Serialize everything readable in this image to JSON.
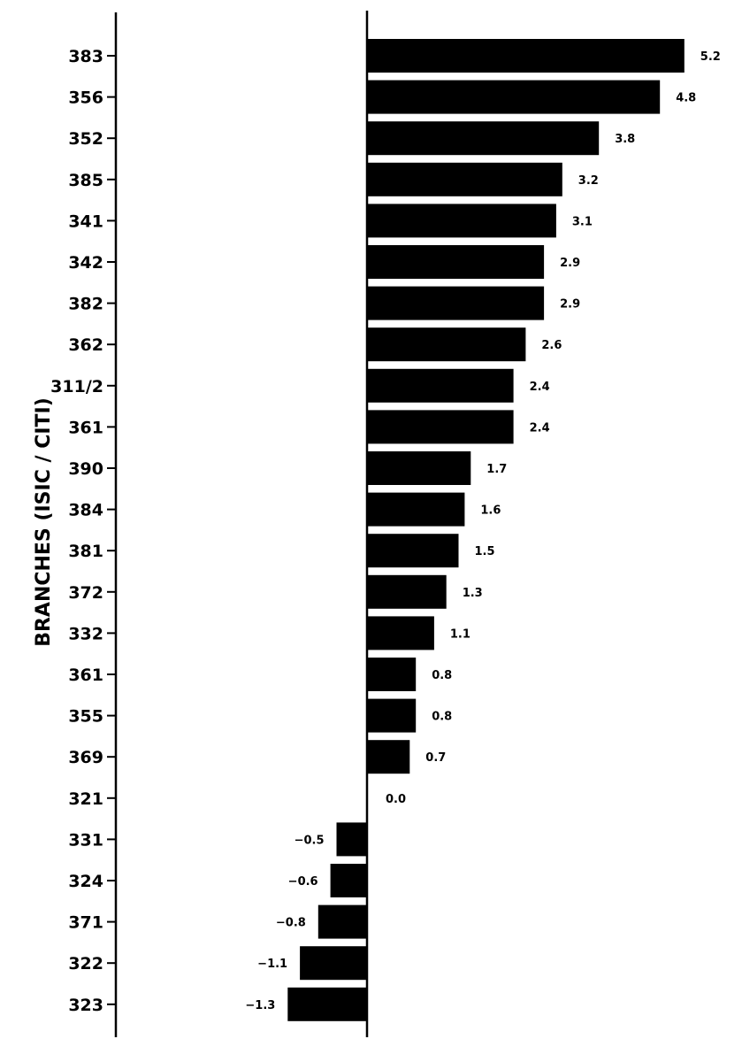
{
  "chart_data": {
    "type": "bar",
    "orientation": "horizontal",
    "ylabel": "BRANCHES (ISIC / CITI)",
    "categories": [
      "383",
      "356",
      "352",
      "385",
      "341",
      "342",
      "382",
      "362",
      "311/2",
      "361",
      "390",
      "384",
      "381",
      "372",
      "332",
      "361",
      "355",
      "369",
      "321",
      "331",
      "324",
      "371",
      "322",
      "323"
    ],
    "values": [
      5.2,
      4.8,
      3.8,
      3.2,
      3.1,
      2.9,
      2.9,
      2.6,
      2.4,
      2.4,
      1.7,
      1.6,
      1.5,
      1.3,
      1.1,
      0.8,
      0.8,
      0.7,
      0.0,
      -0.5,
      -0.6,
      -0.8,
      -1.1,
      -1.3
    ],
    "data_labels": [
      "5.2",
      "4.8",
      "3.8",
      "3.2",
      "3.1",
      "2.9",
      "2.9",
      "2.6",
      "2.4",
      "2.4",
      "1.7",
      "1.6",
      "1.5",
      "1.3",
      "1.1",
      "0.8",
      "0.8",
      "0.7",
      "0.0",
      "−0.5",
      "−0.6",
      "−0.8",
      "−1.1",
      "−1.3"
    ],
    "xlim": [
      -3.9,
      5.2
    ],
    "grid": false,
    "legend": "none",
    "bar_color": "#000000"
  }
}
